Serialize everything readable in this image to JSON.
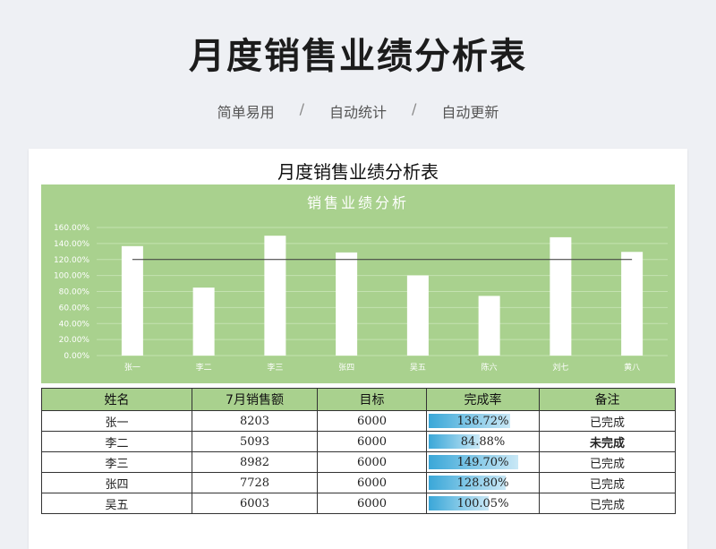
{
  "hero": {
    "title": "月度销售业绩分析表",
    "tags": [
      "简单易用",
      "自动统计",
      "自动更新"
    ],
    "separator": "/"
  },
  "sheet": {
    "title": "月度销售业绩分析表"
  },
  "colors": {
    "chart_bg": "#a9d18e",
    "bar": "#ffffff",
    "progress": "#3aa7d8",
    "alert_text": "#e60000"
  },
  "chart_data": {
    "type": "bar",
    "title": "销售业绩分析",
    "categories": [
      "张一",
      "李二",
      "李三",
      "张四",
      "吴五",
      "陈六",
      "刘七",
      "黄八"
    ],
    "series": [
      {
        "values": [
          136.72,
          84.88,
          149.7,
          128.8,
          100.05,
          74.5,
          147.8,
          129.5
        ]
      }
    ],
    "reference_line": 120,
    "yticks": [
      "0.00%",
      "20.00%",
      "40.00%",
      "60.00%",
      "80.00%",
      "100.00%",
      "120.00%",
      "140.00%",
      "160.00%"
    ],
    "ylim": [
      0,
      160
    ],
    "grid": true
  },
  "table": {
    "headers": [
      "姓名",
      "7月销售额",
      "目标",
      "完成率",
      "备注"
    ],
    "rows": [
      {
        "name": "张一",
        "sales": "8203",
        "target": "6000",
        "rate": "136.72%",
        "rate_value": 136.72,
        "note": "已完成",
        "alert": false
      },
      {
        "name": "李二",
        "sales": "5093",
        "target": "6000",
        "rate": "84.88%",
        "rate_value": 84.88,
        "note": "未完成",
        "alert": true
      },
      {
        "name": "李三",
        "sales": "8982",
        "target": "6000",
        "rate": "149.70%",
        "rate_value": 149.7,
        "note": "已完成",
        "alert": false
      },
      {
        "name": "张四",
        "sales": "7728",
        "target": "6000",
        "rate": "128.80%",
        "rate_value": 128.8,
        "note": "已完成",
        "alert": false
      },
      {
        "name": "吴五",
        "sales": "6003",
        "target": "6000",
        "rate": "100.05%",
        "rate_value": 100.05,
        "note": "已完成",
        "alert": false
      }
    ]
  }
}
